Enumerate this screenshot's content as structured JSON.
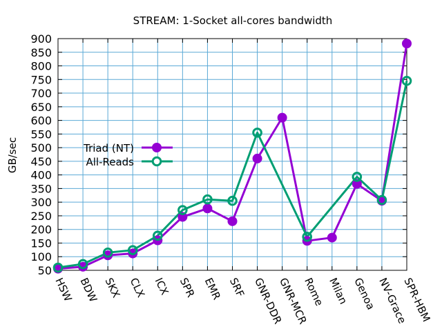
{
  "chart_data": {
    "type": "line",
    "title": "STREAM: 1-Socket all-cores bandwidth",
    "ylabel": "GB/sec",
    "xlabel": "",
    "categories": [
      "HSW",
      "BDW",
      "SKX",
      "CLX",
      "ICX",
      "SPR",
      "EMR",
      "SRF",
      "GNR-DDR",
      "GNR-MCR",
      "Rome",
      "Milan",
      "Genoa",
      "NV-Grace",
      "SPR-HBM"
    ],
    "ylim": [
      50,
      900
    ],
    "yticks": [
      "50",
      "100",
      "150",
      "200",
      "250",
      "300",
      "350",
      "400",
      "450",
      "500",
      "550",
      "600",
      "650",
      "700",
      "750",
      "800",
      "850",
      "900"
    ],
    "grid": true,
    "legend_position": "center-left",
    "series": [
      {
        "name": "Triad (NT)",
        "color": "#9400d3",
        "marker": "filled-circle",
        "values": [
          56,
          63,
          105,
          112,
          160,
          246,
          277,
          230,
          460,
          610,
          158,
          170,
          367,
          305,
          882
        ]
      },
      {
        "name": "All-Reads",
        "color": "#009e73",
        "marker": "open-circle",
        "values": [
          60,
          73,
          115,
          124,
          177,
          271,
          310,
          305,
          555,
          null,
          173,
          null,
          393,
          308,
          745
        ]
      }
    ]
  }
}
